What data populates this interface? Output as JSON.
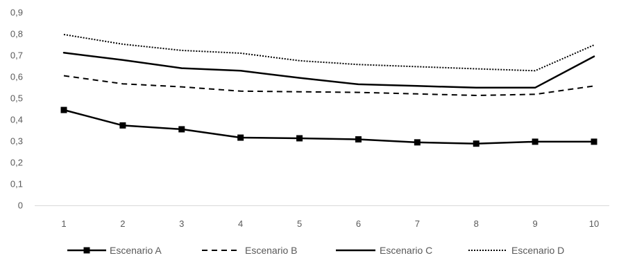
{
  "chart_data": {
    "type": "line",
    "x": [
      1,
      2,
      3,
      4,
      5,
      6,
      7,
      8,
      9,
      10
    ],
    "ylim": [
      0,
      0.9
    ],
    "y_ticks": [
      "0",
      "0,1",
      "0,2",
      "0,3",
      "0,4",
      "0,5",
      "0,6",
      "0,7",
      "0,8",
      "0,9"
    ],
    "x_ticks": [
      "1",
      "2",
      "3",
      "4",
      "5",
      "6",
      "7",
      "8",
      "9",
      "10"
    ],
    "grid": false,
    "legend_position": "bottom",
    "series": [
      {
        "name": "Escenario A",
        "style": "solid-with-square-markers",
        "color": "#000000",
        "values": [
          0.445,
          0.373,
          0.355,
          0.316,
          0.313,
          0.308,
          0.294,
          0.288,
          0.297,
          0.297
        ]
      },
      {
        "name": "Escenario B",
        "style": "dashed",
        "color": "#000000",
        "values": [
          0.605,
          0.567,
          0.553,
          0.533,
          0.53,
          0.527,
          0.52,
          0.513,
          0.518,
          0.557
        ]
      },
      {
        "name": "Escenario C",
        "style": "solid",
        "color": "#000000",
        "values": [
          0.712,
          0.678,
          0.64,
          0.628,
          0.595,
          0.565,
          0.557,
          0.549,
          0.549,
          0.695
        ]
      },
      {
        "name": "Escenario D",
        "style": "dotted",
        "color": "#000000",
        "values": [
          0.797,
          0.752,
          0.723,
          0.71,
          0.675,
          0.657,
          0.647,
          0.637,
          0.628,
          0.748
        ]
      }
    ]
  }
}
